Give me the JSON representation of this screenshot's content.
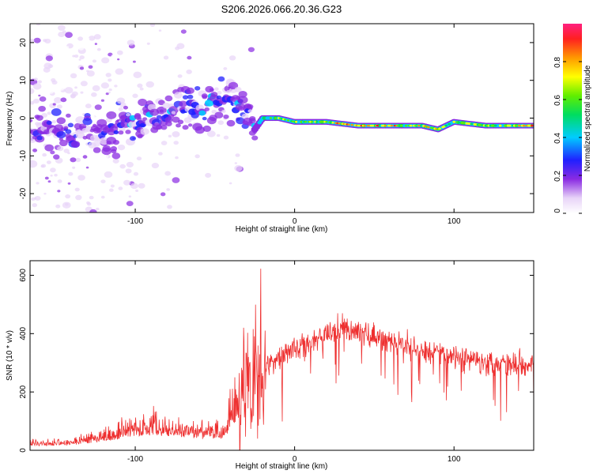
{
  "chart_data": [
    {
      "type": "heatmap",
      "title": "S206.2026.066.20.36.G23",
      "xlabel": "Height of straight line (km)",
      "ylabel": "Frequency (Hz)",
      "xlim": [
        -166,
        150
      ],
      "ylim": [
        -25,
        25
      ],
      "xticks": [
        -100,
        0,
        100
      ],
      "yticks": [
        -20,
        -10,
        0,
        10,
        20
      ],
      "colorbar": {
        "label": "Normalized spectral amplitude",
        "range": [
          0,
          1
        ],
        "ticks": [
          0.0,
          0.2,
          0.4,
          0.6,
          0.8
        ]
      },
      "ridge": [
        {
          "x": -120,
          "y": -4
        },
        {
          "x": -100,
          "y": -1
        },
        {
          "x": -80,
          "y": 1
        },
        {
          "x": -60,
          "y": 3
        },
        {
          "x": -45,
          "y": 5
        },
        {
          "x": -30,
          "y": 3
        },
        {
          "x": -25,
          "y": -3
        },
        {
          "x": -20,
          "y": 0
        },
        {
          "x": -10,
          "y": 0
        },
        {
          "x": 0,
          "y": -1
        },
        {
          "x": 20,
          "y": -1
        },
        {
          "x": 40,
          "y": -2
        },
        {
          "x": 60,
          "y": -2
        },
        {
          "x": 80,
          "y": -2
        },
        {
          "x": 90,
          "y": -3
        },
        {
          "x": 100,
          "y": -1
        },
        {
          "x": 120,
          "y": -2
        },
        {
          "x": 150,
          "y": -2
        }
      ]
    },
    {
      "type": "line",
      "xlabel": "Height of straight line (km)",
      "ylabel": "SNR (10 * v/v)",
      "xlim": [
        -166,
        150
      ],
      "ylim": [
        0,
        650
      ],
      "xticks": [
        -100,
        0,
        100
      ],
      "yticks": [
        0,
        200,
        400,
        600
      ],
      "series": [
        {
          "name": "SNR",
          "color": "#ee3030",
          "envelope": [
            {
              "x": -166,
              "y": 20
            },
            {
              "x": -140,
              "y": 25
            },
            {
              "x": -120,
              "y": 40
            },
            {
              "x": -100,
              "y": 70
            },
            {
              "x": -80,
              "y": 70
            },
            {
              "x": -60,
              "y": 55
            },
            {
              "x": -45,
              "y": 55
            },
            {
              "x": -35,
              "y": 150
            },
            {
              "x": -25,
              "y": 280
            },
            {
              "x": -15,
              "y": 300
            },
            {
              "x": -5,
              "y": 340
            },
            {
              "x": 10,
              "y": 370
            },
            {
              "x": 30,
              "y": 420
            },
            {
              "x": 50,
              "y": 390
            },
            {
              "x": 70,
              "y": 355
            },
            {
              "x": 90,
              "y": 335
            },
            {
              "x": 110,
              "y": 310
            },
            {
              "x": 130,
              "y": 300
            },
            {
              "x": 150,
              "y": 295
            }
          ]
        }
      ]
    }
  ]
}
